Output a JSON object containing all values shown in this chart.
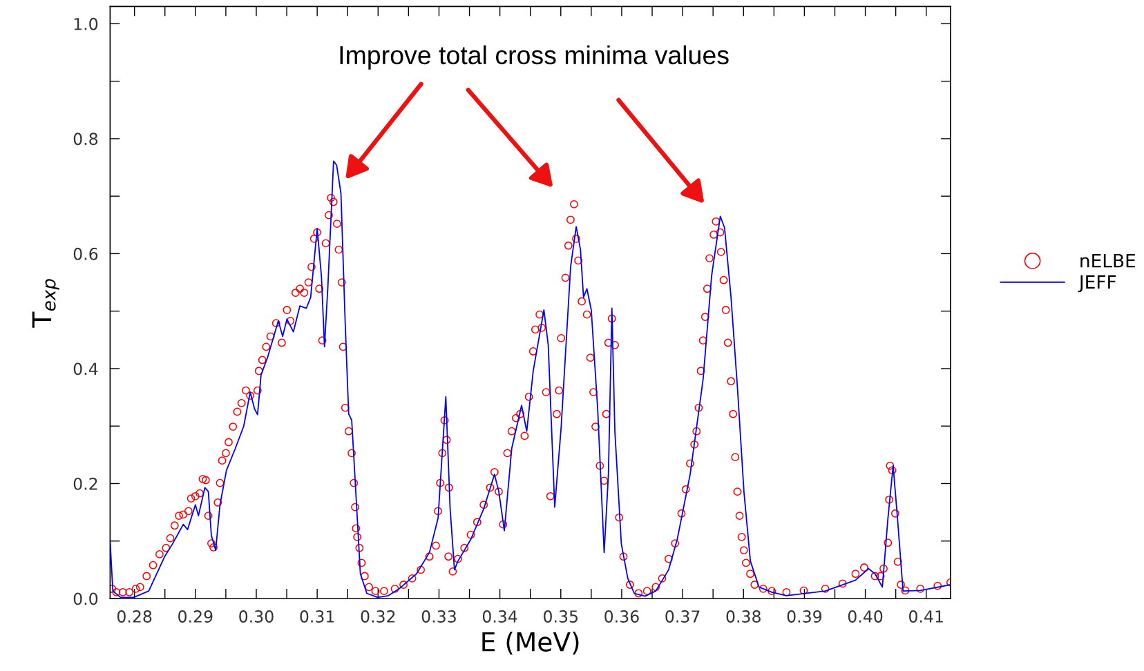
{
  "chart_data": {
    "type": "line",
    "xlabel": "E (MeV)",
    "ylabel": "T$_{exp}$",
    "annotations": [
      "Improve total cross minima values"
    ],
    "xlim": [
      0.276,
      0.414
    ],
    "ylim": [
      0,
      1.03
    ],
    "xticks": [
      0.28,
      {
        "value": 0.285,
        "label": null
      },
      0.29,
      {
        "value": 0.295,
        "label": null
      },
      {
        "value": 0.3,
        "label": "0.30"
      },
      {
        "value": 0.305,
        "label": null
      },
      0.31,
      {
        "value": 0.315,
        "label": null
      },
      0.32,
      {
        "value": 0.325,
        "label": null
      },
      0.33,
      {
        "value": 0.335,
        "label": null
      },
      0.34,
      {
        "value": 0.345,
        "label": null
      },
      0.35,
      {
        "value": 0.355,
        "label": null
      },
      0.36,
      {
        "value": 0.365,
        "label": null
      },
      0.37,
      {
        "value": 0.375,
        "label": null
      },
      0.38,
      {
        "value": 0.385,
        "label": null
      },
      0.39,
      {
        "value": 0.395,
        "label": null
      },
      {
        "value": 0.4,
        "label": "0.40"
      },
      {
        "value": 0.405,
        "label": null
      },
      0.41
    ],
    "yticks": [
      {
        "value": 0,
        "label": "0.0"
      },
      {
        "value": 0.1,
        "label": null
      },
      0.2,
      {
        "value": 0.3,
        "label": null
      },
      0.4,
      {
        "value": 0.5,
        "label": null
      },
      0.6,
      {
        "value": 0.7,
        "label": null
      },
      0.8,
      {
        "value": 0.9,
        "label": null
      },
      {
        "value": 1,
        "label": "1.0"
      }
    ],
    "grid": false,
    "legend": "right",
    "series": [
      {
        "name": "nELBE",
        "type": "scatter",
        "marker": "circle",
        "color": "#ff0000",
        "x": [
          0.27631,
          0.27702,
          0.27809,
          0.27915,
          0.28021,
          0.28092,
          0.28199,
          0.28305,
          0.28411,
          0.28518,
          0.28588,
          0.28659,
          0.2873,
          0.28801,
          0.28886,
          0.28929,
          0.29,
          0.29071,
          0.2912,
          0.2917,
          0.29212,
          0.29262,
          0.29297,
          0.29368,
          0.29404,
          0.29439,
          0.295,
          0.29546,
          0.29617,
          0.29687,
          0.29758,
          0.29829,
          0.299,
          0.30021,
          0.30042,
          0.30099,
          0.30162,
          0.30233,
          0.30326,
          0.30418,
          0.30503,
          0.30559,
          0.30645,
          0.30716,
          0.30786,
          0.30857,
          0.30907,
          0.30949,
          0.30999,
          0.31035,
          0.31084,
          0.31141,
          0.31191,
          0.31226,
          0.31268,
          0.31325,
          0.31354,
          0.31403,
          0.31424,
          0.3146,
          0.31517,
          0.31566,
          0.31602,
          0.31623,
          0.31637,
          0.31658,
          0.31694,
          0.31729,
          0.31779,
          0.3185,
          0.31956,
          0.32098,
          0.32275,
          0.32417,
          0.32559,
          0.32701,
          0.32842,
          0.32949,
          0.32984,
          0.3302,
          0.33055,
          0.33091,
          0.33126,
          0.33162,
          0.33155,
          0.33226,
          0.33311,
          0.33417,
          0.33522,
          0.33628,
          0.33734,
          0.3384,
          0.33911,
          0.33981,
          0.34052,
          0.34123,
          0.34193,
          0.34264,
          0.34334,
          0.34405,
          0.34476,
          0.34546,
          0.34581,
          0.34652,
          0.34687,
          0.34758,
          0.34829,
          0.34934,
          0.3497,
          0.35005,
          0.35076,
          0.35125,
          0.3516,
          0.35217,
          0.35252,
          0.35287,
          0.35344,
          0.35429,
          0.35485,
          0.35535,
          0.3557,
          0.35641,
          0.35711,
          0.35746,
          0.35782,
          0.35838,
          0.35888,
          0.35958,
          0.36029,
          0.36135,
          0.36276,
          0.36417,
          0.36558,
          0.36664,
          0.3677,
          0.36876,
          0.36982,
          0.37052,
          0.37123,
          0.37194,
          0.37229,
          0.37264,
          0.373,
          0.37335,
          0.3737,
          0.37405,
          0.37441,
          0.37511,
          0.37547,
          0.37617,
          0.37631,
          0.37674,
          0.37709,
          0.37744,
          0.37794,
          0.37829,
          0.37864,
          0.379,
          0.37935,
          0.3797,
          0.38006,
          0.38041,
          0.38111,
          0.38182,
          0.38323,
          0.38464,
          0.38705,
          0.38989,
          0.39343,
          0.39627,
          0.39839,
          0.39981,
          0.40158,
          0.4025,
          0.403,
          0.40371,
          0.40392,
          0.40406,
          0.40442,
          0.40491,
          0.40534,
          0.40584,
          0.40655,
          0.40903,
          0.41187,
          0.41399
        ],
        "values": [
          0.017,
          0.011,
          0.011,
          0.011,
          0.017,
          0.02,
          0.039,
          0.058,
          0.077,
          0.088,
          0.105,
          0.127,
          0.144,
          0.146,
          0.152,
          0.174,
          0.178,
          0.183,
          0.208,
          0.206,
          0.144,
          0.096,
          0.089,
          0.167,
          0.201,
          0.24,
          0.253,
          0.272,
          0.299,
          0.325,
          0.34,
          0.362,
          0.353,
          0.362,
          0.396,
          0.415,
          0.438,
          0.456,
          0.479,
          0.445,
          0.502,
          0.483,
          0.532,
          0.539,
          0.532,
          0.55,
          0.577,
          0.626,
          0.637,
          0.539,
          0.449,
          0.618,
          0.667,
          0.697,
          0.69,
          0.652,
          0.607,
          0.55,
          0.438,
          0.332,
          0.291,
          0.253,
          0.201,
          0.159,
          0.122,
          0.107,
          0.088,
          0.062,
          0.039,
          0.02,
          0.013,
          0.013,
          0.017,
          0.024,
          0.035,
          0.05,
          0.073,
          0.092,
          0.152,
          0.201,
          0.253,
          0.31,
          0.276,
          0.193,
          0.073,
          0.047,
          0.069,
          0.088,
          0.111,
          0.133,
          0.163,
          0.193,
          0.22,
          0.186,
          0.129,
          0.253,
          0.291,
          0.314,
          0.321,
          0.283,
          0.351,
          0.43,
          0.468,
          0.494,
          0.471,
          0.359,
          0.178,
          0.321,
          0.362,
          0.453,
          0.558,
          0.614,
          0.659,
          0.686,
          0.626,
          0.588,
          0.517,
          0.494,
          0.419,
          0.359,
          0.299,
          0.231,
          0.205,
          0.321,
          0.445,
          0.487,
          0.441,
          0.141,
          0.073,
          0.024,
          0.009,
          0.013,
          0.02,
          0.035,
          0.069,
          0.096,
          0.148,
          0.19,
          0.235,
          0.268,
          0.291,
          0.332,
          0.396,
          0.449,
          0.49,
          0.539,
          0.592,
          0.633,
          0.656,
          0.637,
          0.603,
          0.554,
          0.502,
          0.445,
          0.378,
          0.321,
          0.246,
          0.186,
          0.144,
          0.107,
          0.084,
          0.062,
          0.043,
          0.024,
          0.017,
          0.013,
          0.011,
          0.014,
          0.017,
          0.026,
          0.043,
          0.054,
          0.039,
          0.039,
          0.052,
          0.097,
          0.172,
          0.231,
          0.223,
          0.148,
          0.064,
          0.024,
          0.014,
          0.017,
          0.022,
          0.028
        ]
      },
      {
        "name": "JEFF",
        "marker": "none",
        "line_style": "solid",
        "color": "#0000ff",
        "x": [
          0.276,
          0.27645,
          0.27773,
          0.27986,
          0.28234,
          0.28496,
          0.28624,
          0.28801,
          0.28872,
          0.29,
          0.2905,
          0.29156,
          0.29213,
          0.29262,
          0.29333,
          0.29404,
          0.2951,
          0.29652,
          0.29794,
          0.299,
          0.29971,
          0.30021,
          0.30078,
          0.30184,
          0.30362,
          0.30433,
          0.30503,
          0.30609,
          0.30716,
          0.30822,
          0.30893,
          0.31,
          0.3107,
          0.3112,
          0.31177,
          0.31269,
          0.31319,
          0.3139,
          0.3146,
          0.31517,
          0.31567,
          0.31638,
          0.31709,
          0.31815,
          0.31992,
          0.3217,
          0.32346,
          0.3263,
          0.32843,
          0.32985,
          0.33112,
          0.33183,
          0.33254,
          0.33311,
          0.33523,
          0.33734,
          0.33911,
          0.33982,
          0.34073,
          0.34194,
          0.34356,
          0.34441,
          0.34547,
          0.34723,
          0.34794,
          0.349,
          0.35006,
          0.35161,
          0.35253,
          0.35323,
          0.35373,
          0.35429,
          0.355,
          0.35606,
          0.35712,
          0.35782,
          0.35839,
          0.35888,
          0.35994,
          0.361,
          0.36206,
          0.36383,
          0.36559,
          0.36771,
          0.36912,
          0.37124,
          0.37336,
          0.37477,
          0.37619,
          0.37689,
          0.37795,
          0.37901,
          0.38007,
          0.38113,
          0.38254,
          0.38466,
          0.38705,
          0.39343,
          0.3984,
          0.40053,
          0.4016,
          0.4028,
          0.40372,
          0.40457,
          0.40528,
          0.4062,
          0.40904,
          0.414
        ],
        "values": [
          0.099,
          0.013,
          0.002,
          0.002,
          0.013,
          0.073,
          0.095,
          0.129,
          0.12,
          0.163,
          0.144,
          0.193,
          0.186,
          0.11,
          0.084,
          0.163,
          0.223,
          0.26,
          0.3,
          0.359,
          0.33,
          0.32,
          0.389,
          0.419,
          0.483,
          0.456,
          0.486,
          0.464,
          0.509,
          0.505,
          0.524,
          0.644,
          0.56,
          0.438,
          0.546,
          0.761,
          0.754,
          0.705,
          0.479,
          0.321,
          0.31,
          0.178,
          0.043,
          0.009,
          0.002,
          0.005,
          0.017,
          0.043,
          0.08,
          0.14,
          0.351,
          0.156,
          0.05,
          0.065,
          0.103,
          0.156,
          0.216,
          0.186,
          0.118,
          0.261,
          0.336,
          0.291,
          0.396,
          0.502,
          0.441,
          0.159,
          0.298,
          0.577,
          0.647,
          0.607,
          0.524,
          0.539,
          0.502,
          0.329,
          0.08,
          0.216,
          0.505,
          0.291,
          0.095,
          0.035,
          0.009,
          0.004,
          0.013,
          0.05,
          0.103,
          0.216,
          0.381,
          0.562,
          0.665,
          0.645,
          0.524,
          0.366,
          0.186,
          0.065,
          0.02,
          0.011,
          0.005,
          0.013,
          0.032,
          0.052,
          0.043,
          0.02,
          0.14,
          0.231,
          0.14,
          0.013,
          0.014,
          0.024
        ]
      }
    ]
  }
}
